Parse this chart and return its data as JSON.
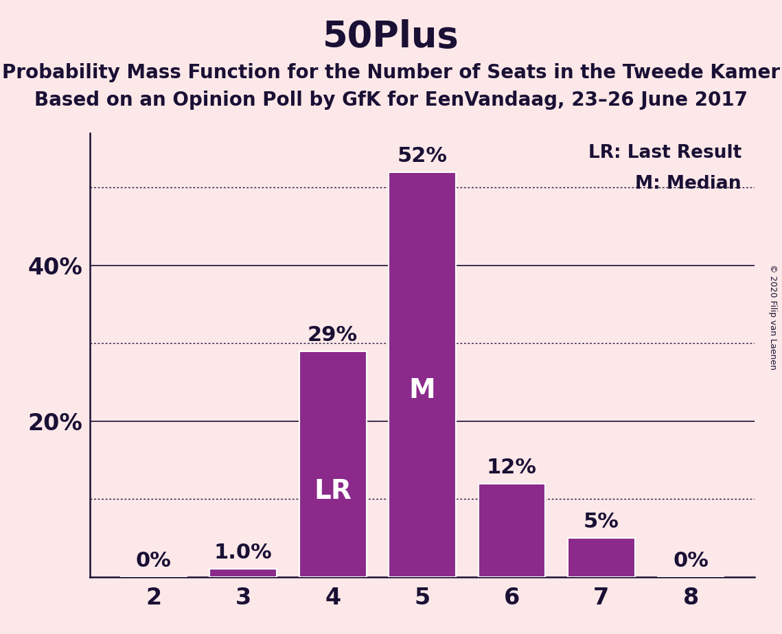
{
  "title": "50Plus",
  "subtitle1": "Probability Mass Function for the Number of Seats in the Tweede Kamer",
  "subtitle2": "Based on an Opinion Poll by GfK for EenVandaag, 23–26 June 2017",
  "copyright": "© 2020 Filip van Laenen",
  "categories": [
    2,
    3,
    4,
    5,
    6,
    7,
    8
  ],
  "values": [
    0.0,
    1.0,
    29.0,
    52.0,
    12.0,
    5.0,
    0.0
  ],
  "bar_labels": [
    "0%",
    "1.0%",
    "29%",
    "52%",
    "12%",
    "5%",
    "0%"
  ],
  "bar_color": "#8b2a8b",
  "background_color": "#fce8e8",
  "title_fontsize": 38,
  "subtitle_fontsize": 20,
  "solid_yticks": [
    20,
    40
  ],
  "solid_ytick_labels": [
    "20%",
    "40%"
  ],
  "dotted_lines": [
    10,
    30,
    50
  ],
  "ylim": [
    0,
    57
  ],
  "lr_bar_index": 2,
  "lr_label": "LR",
  "median_bar_index": 3,
  "median_label": "M",
  "legend_text1": "LR: Last Result",
  "legend_text2": "M: Median",
  "bar_label_fontsize": 22,
  "inside_label_fontsize": 28,
  "axis_tick_fontsize": 24,
  "text_color": "#1a1035"
}
